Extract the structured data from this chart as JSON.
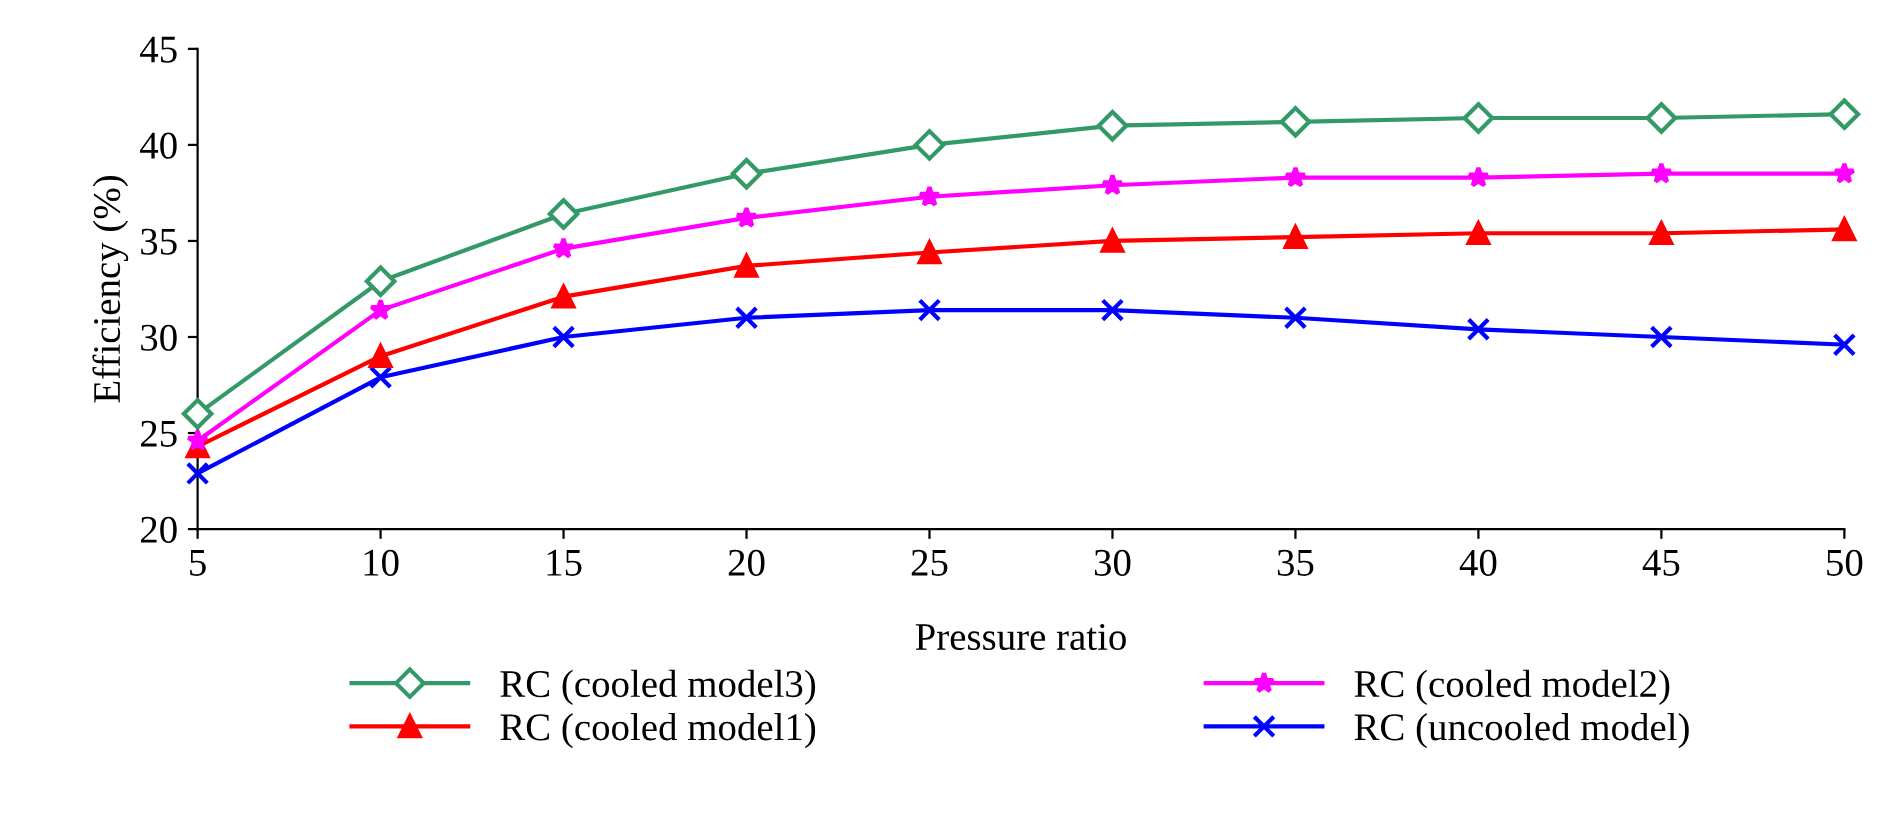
{
  "chart_data": {
    "type": "line",
    "xlabel": "Pressure ratio",
    "ylabel": "Efficiency (%)",
    "x": [
      5,
      10,
      15,
      20,
      25,
      30,
      35,
      40,
      45,
      50
    ],
    "xlim": [
      5,
      50
    ],
    "xticks": [
      5,
      10,
      15,
      20,
      25,
      30,
      35,
      40,
      45,
      50
    ],
    "ylim": [
      20,
      45
    ],
    "yticks": [
      20,
      25,
      30,
      35,
      40,
      45
    ],
    "grid": false,
    "legend": "bottom",
    "series": [
      {
        "name": "RC (cooled model3)",
        "color": "#339966",
        "marker": "diamond",
        "values": [
          26.0,
          32.9,
          36.4,
          38.5,
          40.0,
          41.0,
          41.2,
          41.4,
          41.4,
          41.6
        ]
      },
      {
        "name": "RC (cooled model2)",
        "color": "#ff00ff",
        "marker": "star",
        "values": [
          24.6,
          31.4,
          34.6,
          36.2,
          37.3,
          37.9,
          38.3,
          38.3,
          38.5,
          38.5
        ]
      },
      {
        "name": "RC (cooled model1)",
        "color": "#ff0000",
        "marker": "triangle",
        "values": [
          24.3,
          29.0,
          32.1,
          33.7,
          34.4,
          35.0,
          35.2,
          35.4,
          35.4,
          35.6
        ]
      },
      {
        "name": "RC (uncooled model)",
        "color": "#0000ff",
        "marker": "cross",
        "values": [
          22.9,
          27.9,
          30.0,
          31.0,
          31.4,
          31.4,
          31.0,
          30.4,
          30.0,
          29.6
        ]
      }
    ]
  }
}
